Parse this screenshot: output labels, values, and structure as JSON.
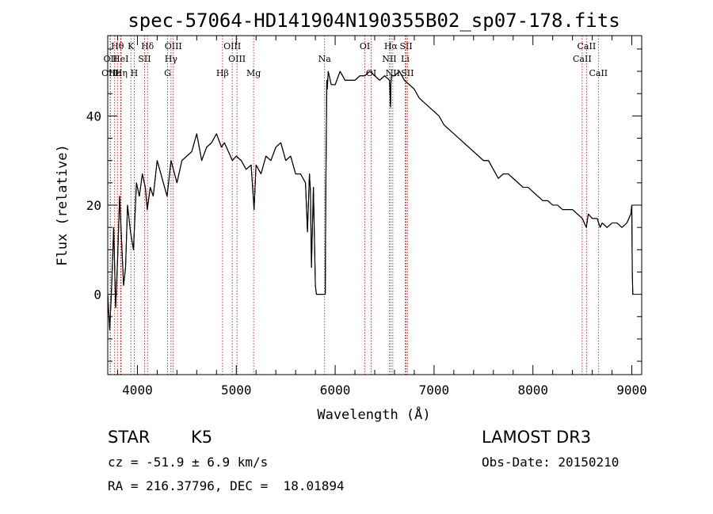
{
  "chart_data": {
    "type": "line",
    "title": "spec-57064-HD141904N190355B02_sp07-178.fits",
    "xlabel": "Wavelength (Å)",
    "ylabel": "Flux (relative)",
    "xlim": [
      3700,
      9100
    ],
    "ylim": [
      -18,
      58
    ],
    "x_ticks": [
      4000,
      5000,
      6000,
      7000,
      8000,
      9000
    ],
    "x_tick_labels": [
      "4000",
      "5000",
      "6000",
      "7000",
      "8000",
      "9000"
    ],
    "y_ticks": [
      0,
      20,
      40
    ],
    "y_tick_labels": [
      "0",
      "20",
      "40"
    ],
    "grid": false,
    "line_color": "#000000",
    "marker_color": "#cc0000",
    "series": [
      {
        "name": "flux",
        "x": [
          3700,
          3720,
          3740,
          3760,
          3780,
          3800,
          3820,
          3840,
          3860,
          3880,
          3900,
          3930,
          3960,
          3990,
          4020,
          4050,
          4080,
          4100,
          4130,
          4160,
          4200,
          4250,
          4300,
          4340,
          4400,
          4450,
          4500,
          4550,
          4600,
          4650,
          4700,
          4750,
          4800,
          4850,
          4880,
          4920,
          4960,
          5000,
          5050,
          5100,
          5150,
          5180,
          5200,
          5250,
          5300,
          5350,
          5400,
          5450,
          5500,
          5550,
          5600,
          5650,
          5700,
          5720,
          5740,
          5750,
          5760,
          5780,
          5800,
          5810,
          5890,
          5900,
          5905,
          5915,
          5920,
          5930,
          5960,
          6000,
          6050,
          6100,
          6150,
          6200,
          6250,
          6300,
          6350,
          6400,
          6450,
          6500,
          6550,
          6560,
          6563,
          6570,
          6600,
          6650,
          6700,
          6750,
          6800,
          6850,
          6900,
          6950,
          7000,
          7050,
          7100,
          7150,
          7200,
          7250,
          7300,
          7350,
          7400,
          7450,
          7500,
          7550,
          7600,
          7650,
          7700,
          7750,
          7800,
          7850,
          7900,
          7950,
          8000,
          8050,
          8100,
          8150,
          8200,
          8250,
          8300,
          8350,
          8400,
          8450,
          8500,
          8540,
          8560,
          8600,
          8650,
          8680,
          8700,
          8750,
          8800,
          8850,
          8900,
          8950,
          8990,
          9000,
          9005,
          9010
        ],
        "y": [
          0,
          -8,
          2,
          15,
          -3,
          8,
          22,
          12,
          2,
          6,
          20,
          14,
          10,
          25,
          22,
          27,
          24,
          19,
          24,
          22,
          30,
          26,
          22,
          30,
          25,
          30,
          31,
          32,
          36,
          30,
          33,
          34,
          36,
          33,
          34,
          32,
          30,
          31,
          30,
          28,
          29,
          19,
          29,
          27,
          31,
          30,
          33,
          34,
          30,
          31,
          27,
          27,
          25,
          14,
          27,
          23,
          6,
          24,
          2,
          0,
          0,
          0,
          22,
          48,
          46,
          50,
          47,
          47,
          50,
          48,
          48,
          48,
          49,
          49,
          50,
          49,
          48,
          49,
          48,
          42,
          47,
          49,
          49,
          50,
          48,
          47,
          46,
          44,
          43,
          42,
          41,
          40,
          38,
          37,
          36,
          35,
          34,
          33,
          32,
          31,
          30,
          30,
          28,
          26,
          27,
          27,
          26,
          25,
          24,
          24,
          23,
          22,
          21,
          21,
          20,
          20,
          19,
          19,
          19,
          18,
          17,
          15,
          18,
          17,
          17,
          15,
          16,
          15,
          16,
          16,
          15,
          16,
          18,
          20,
          5,
          0
        ]
      }
    ],
    "line_markers": [
      {
        "label": "Hθ",
        "x": 3798,
        "row": 1
      },
      {
        "label": "OII",
        "x": 3727,
        "row": 2
      },
      {
        "label": "OIII",
        "x": 3725,
        "row": 3
      },
      {
        "label": "Hε",
        "x": 3770,
        "row": 3
      },
      {
        "label": "HeI",
        "x": 3830,
        "row": 2
      },
      {
        "label": "Hη",
        "x": 3835,
        "row": 3
      },
      {
        "label": "K",
        "x": 3934,
        "row": 1
      },
      {
        "label": "H",
        "x": 3968,
        "row": 3
      },
      {
        "label": "SII",
        "x": 4072,
        "row": 2
      },
      {
        "label": "Hδ",
        "x": 4102,
        "row": 1
      },
      {
        "label": "OIII",
        "x": 4363,
        "row": 1
      },
      {
        "label": "Hγ",
        "x": 4340,
        "row": 2
      },
      {
        "label": "G",
        "x": 4305,
        "row": 3
      },
      {
        "label": "Hβ",
        "x": 4861,
        "row": 3
      },
      {
        "label": "OIII",
        "x": 4959,
        "row": 1
      },
      {
        "label": "OIII",
        "x": 5007,
        "row": 2
      },
      {
        "label": "Mg",
        "x": 5175,
        "row": 3
      },
      {
        "label": "Na",
        "x": 5893,
        "row": 2
      },
      {
        "label": "OI",
        "x": 6300,
        "row": 1
      },
      {
        "label": "OI",
        "x": 6364,
        "row": 3
      },
      {
        "label": "Hα",
        "x": 6563,
        "row": 1
      },
      {
        "label": "NII",
        "x": 6548,
        "row": 2
      },
      {
        "label": "NII",
        "x": 6583,
        "row": 3
      },
      {
        "label": "SII",
        "x": 6717,
        "row": 1
      },
      {
        "label": "Li",
        "x": 6708,
        "row": 2
      },
      {
        "label": "SII",
        "x": 6731,
        "row": 3
      },
      {
        "label": "CaII",
        "x": 8542,
        "row": 1
      },
      {
        "label": "CaII",
        "x": 8498,
        "row": 2
      },
      {
        "label": "CaII",
        "x": 8662,
        "row": 3
      }
    ]
  },
  "info": {
    "object_class": "STAR",
    "subclass": "K5",
    "survey": "LAMOST DR3",
    "redshift": "cz = -51.9 ± 6.9 km/s",
    "obs_date": "Obs-Date: 20150210",
    "coords": "RA = 216.37796, DEC =  18.01894"
  }
}
